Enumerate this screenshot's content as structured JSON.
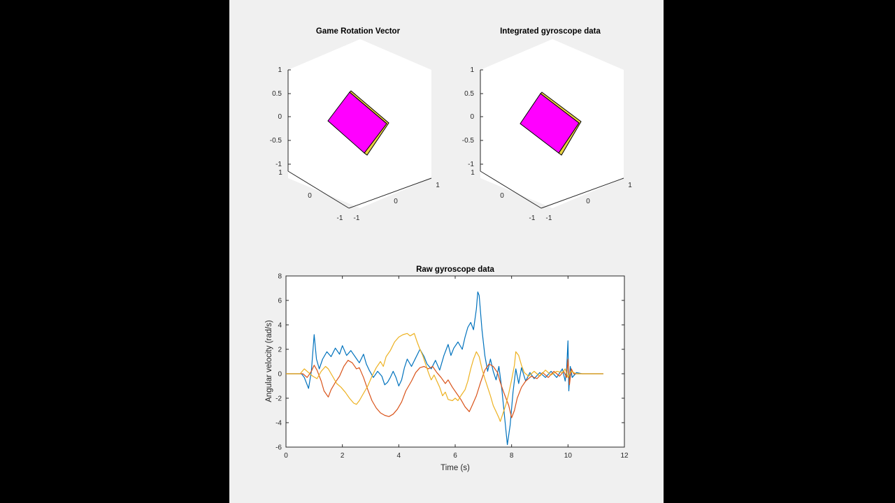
{
  "chart_data": [
    {
      "type": "3d-box",
      "title": "Game Rotation Vector",
      "zlim": [
        -1,
        1
      ],
      "xlim": [
        -1,
        1
      ],
      "ylim": [
        -1,
        1
      ],
      "z_ticks": [
        "1",
        "0.5",
        "0",
        "-0.5",
        "-1"
      ],
      "x_ticks": [
        "-1",
        "0",
        "1"
      ],
      "y_ticks": [
        "1",
        "0",
        "-1"
      ],
      "box_color": "#ff00ff",
      "side_color": "#e8d040"
    },
    {
      "type": "3d-box",
      "title": "Integrated gyroscope data",
      "zlim": [
        -1,
        1
      ],
      "xlim": [
        -1,
        1
      ],
      "ylim": [
        -1,
        1
      ],
      "z_ticks": [
        "1",
        "0.5",
        "0",
        "-0.5",
        "-1"
      ],
      "x_ticks": [
        "-1",
        "0",
        "1"
      ],
      "y_ticks": [
        "1",
        "0",
        "-1"
      ],
      "box_color": "#ff00ff",
      "side_color": "#e8d040"
    },
    {
      "type": "line",
      "title": "Raw gyroscope data",
      "xlabel": "Time (s)",
      "ylabel": "Angular velocity (rad/s)",
      "xlim": [
        0,
        12
      ],
      "ylim": [
        -6,
        8
      ],
      "x_ticks": [
        0,
        2,
        4,
        6,
        8,
        10,
        12
      ],
      "y_ticks": [
        -6,
        -4,
        -2,
        0,
        2,
        4,
        6,
        8
      ],
      "grid": false,
      "series": [
        {
          "color": "#0072bd",
          "points": [
            [
              0,
              0
            ],
            [
              0.55,
              0
            ],
            [
              0.65,
              -0.3
            ],
            [
              0.8,
              -1.2
            ],
            [
              0.9,
              0.2
            ],
            [
              1.0,
              3.2
            ],
            [
              1.08,
              1.2
            ],
            [
              1.18,
              0.4
            ],
            [
              1.3,
              1.2
            ],
            [
              1.45,
              1.8
            ],
            [
              1.6,
              1.4
            ],
            [
              1.75,
              2.1
            ],
            [
              1.9,
              1.6
            ],
            [
              2.0,
              2.3
            ],
            [
              2.15,
              1.5
            ],
            [
              2.3,
              1.9
            ],
            [
              2.45,
              1.4
            ],
            [
              2.6,
              0.9
            ],
            [
              2.75,
              1.6
            ],
            [
              2.85,
              0.8
            ],
            [
              2.95,
              0.3
            ],
            [
              3.1,
              -0.3
            ],
            [
              3.25,
              0.2
            ],
            [
              3.4,
              -0.2
            ],
            [
              3.5,
              -0.9
            ],
            [
              3.6,
              -0.7
            ],
            [
              3.7,
              -0.3
            ],
            [
              3.8,
              0.2
            ],
            [
              3.9,
              -0.3
            ],
            [
              4.0,
              -1.0
            ],
            [
              4.1,
              -0.5
            ],
            [
              4.2,
              0.5
            ],
            [
              4.3,
              1.2
            ],
            [
              4.45,
              0.6
            ],
            [
              4.6,
              1.3
            ],
            [
              4.75,
              2.0
            ],
            [
              4.9,
              1.4
            ],
            [
              5.0,
              0.8
            ],
            [
              5.15,
              0.4
            ],
            [
              5.3,
              1.1
            ],
            [
              5.45,
              0.3
            ],
            [
              5.6,
              1.5
            ],
            [
              5.75,
              2.4
            ],
            [
              5.85,
              1.5
            ],
            [
              5.95,
              2.1
            ],
            [
              6.1,
              2.6
            ],
            [
              6.25,
              2.0
            ],
            [
              6.35,
              3.0
            ],
            [
              6.45,
              3.8
            ],
            [
              6.55,
              4.2
            ],
            [
              6.65,
              3.6
            ],
            [
              6.75,
              5.3
            ],
            [
              6.8,
              6.7
            ],
            [
              6.85,
              6.4
            ],
            [
              6.95,
              3.6
            ],
            [
              7.05,
              1.5
            ],
            [
              7.15,
              0.2
            ],
            [
              7.25,
              1.2
            ],
            [
              7.35,
              0.2
            ],
            [
              7.45,
              -0.5
            ],
            [
              7.55,
              0.6
            ],
            [
              7.65,
              -1.2
            ],
            [
              7.75,
              -3.5
            ],
            [
              7.85,
              -5.8
            ],
            [
              7.95,
              -4.2
            ],
            [
              8.05,
              -1.5
            ],
            [
              8.15,
              0.4
            ],
            [
              8.25,
              -0.8
            ],
            [
              8.35,
              0.5
            ],
            [
              8.5,
              -0.6
            ],
            [
              8.65,
              0.1
            ],
            [
              8.8,
              -0.4
            ],
            [
              9.0,
              0.1
            ],
            [
              9.2,
              -0.3
            ],
            [
              9.4,
              0.2
            ],
            [
              9.6,
              -0.3
            ],
            [
              9.8,
              0.4
            ],
            [
              9.9,
              -0.6
            ],
            [
              9.95,
              0.3
            ],
            [
              10.0,
              2.7
            ],
            [
              10.03,
              -1.4
            ],
            [
              10.08,
              0.6
            ],
            [
              10.15,
              -0.3
            ],
            [
              10.3,
              0.1
            ],
            [
              10.5,
              0
            ],
            [
              11.25,
              0
            ]
          ]
        },
        {
          "color": "#d95319",
          "points": [
            [
              0,
              0
            ],
            [
              0.6,
              0
            ],
            [
              0.75,
              -0.3
            ],
            [
              0.9,
              0.2
            ],
            [
              1.0,
              0.7
            ],
            [
              1.1,
              0.3
            ],
            [
              1.25,
              -0.6
            ],
            [
              1.35,
              -1.4
            ],
            [
              1.5,
              -1.9
            ],
            [
              1.6,
              -1.3
            ],
            [
              1.75,
              -0.7
            ],
            [
              1.9,
              -0.2
            ],
            [
              2.05,
              0.6
            ],
            [
              2.2,
              1.1
            ],
            [
              2.35,
              0.9
            ],
            [
              2.5,
              0.4
            ],
            [
              2.6,
              0.5
            ],
            [
              2.75,
              -0.3
            ],
            [
              2.9,
              -1.3
            ],
            [
              3.05,
              -2.2
            ],
            [
              3.2,
              -2.8
            ],
            [
              3.35,
              -3.2
            ],
            [
              3.5,
              -3.4
            ],
            [
              3.65,
              -3.5
            ],
            [
              3.8,
              -3.3
            ],
            [
              3.95,
              -2.9
            ],
            [
              4.1,
              -2.3
            ],
            [
              4.25,
              -1.4
            ],
            [
              4.45,
              -0.6
            ],
            [
              4.6,
              0.1
            ],
            [
              4.75,
              0.5
            ],
            [
              4.9,
              0.6
            ],
            [
              5.05,
              0.4
            ],
            [
              5.2,
              0.6
            ],
            [
              5.35,
              0.1
            ],
            [
              5.5,
              -0.3
            ],
            [
              5.65,
              -0.8
            ],
            [
              5.75,
              -0.5
            ],
            [
              5.9,
              -1.1
            ],
            [
              6.05,
              -1.6
            ],
            [
              6.2,
              -2.1
            ],
            [
              6.35,
              -2.7
            ],
            [
              6.5,
              -3.1
            ],
            [
              6.6,
              -2.6
            ],
            [
              6.75,
              -1.8
            ],
            [
              6.9,
              -0.7
            ],
            [
              7.05,
              0.3
            ],
            [
              7.2,
              0.8
            ],
            [
              7.35,
              0.6
            ],
            [
              7.5,
              0.1
            ],
            [
              7.6,
              -0.7
            ],
            [
              7.7,
              -1.4
            ],
            [
              7.8,
              -2.0
            ],
            [
              7.9,
              -2.6
            ],
            [
              8.0,
              -3.6
            ],
            [
              8.1,
              -3.0
            ],
            [
              8.2,
              -2.0
            ],
            [
              8.35,
              -1.1
            ],
            [
              8.5,
              -0.6
            ],
            [
              8.7,
              -0.2
            ],
            [
              8.9,
              -0.4
            ],
            [
              9.1,
              0.1
            ],
            [
              9.3,
              -0.3
            ],
            [
              9.5,
              0.2
            ],
            [
              9.7,
              -0.2
            ],
            [
              9.85,
              0.2
            ],
            [
              9.95,
              -0.3
            ],
            [
              10.0,
              1.2
            ],
            [
              10.05,
              -0.9
            ],
            [
              10.12,
              0.4
            ],
            [
              10.2,
              0
            ],
            [
              11.25,
              0
            ]
          ]
        },
        {
          "color": "#edb120",
          "points": [
            [
              0,
              0
            ],
            [
              0.5,
              0
            ],
            [
              0.65,
              0.4
            ],
            [
              0.8,
              0.1
            ],
            [
              0.95,
              -0.2
            ],
            [
              1.1,
              -0.4
            ],
            [
              1.25,
              0.2
            ],
            [
              1.4,
              0.6
            ],
            [
              1.5,
              0.4
            ],
            [
              1.65,
              -0.2
            ],
            [
              1.8,
              -0.8
            ],
            [
              1.95,
              -1.1
            ],
            [
              2.1,
              -1.5
            ],
            [
              2.25,
              -2.0
            ],
            [
              2.4,
              -2.4
            ],
            [
              2.5,
              -2.5
            ],
            [
              2.6,
              -2.2
            ],
            [
              2.75,
              -1.6
            ],
            [
              2.9,
              -1.0
            ],
            [
              3.05,
              -0.2
            ],
            [
              3.2,
              0.5
            ],
            [
              3.35,
              1.0
            ],
            [
              3.45,
              0.6
            ],
            [
              3.55,
              1.4
            ],
            [
              3.7,
              1.9
            ],
            [
              3.85,
              2.6
            ],
            [
              4.0,
              3.0
            ],
            [
              4.15,
              3.2
            ],
            [
              4.3,
              3.3
            ],
            [
              4.4,
              3.1
            ],
            [
              4.55,
              3.3
            ],
            [
              4.65,
              2.6
            ],
            [
              4.75,
              2.0
            ],
            [
              4.85,
              1.5
            ],
            [
              4.95,
              0.8
            ],
            [
              5.05,
              0.1
            ],
            [
              5.15,
              -0.5
            ],
            [
              5.25,
              -0.1
            ],
            [
              5.35,
              -0.6
            ],
            [
              5.45,
              -1.1
            ],
            [
              5.55,
              -1.8
            ],
            [
              5.65,
              -1.5
            ],
            [
              5.75,
              -2.1
            ],
            [
              5.9,
              -2.2
            ],
            [
              6.0,
              -2.0
            ],
            [
              6.1,
              -2.2
            ],
            [
              6.2,
              -1.8
            ],
            [
              6.35,
              -1.3
            ],
            [
              6.45,
              -0.6
            ],
            [
              6.55,
              0.4
            ],
            [
              6.65,
              1.2
            ],
            [
              6.75,
              1.8
            ],
            [
              6.85,
              1.4
            ],
            [
              6.95,
              0.4
            ],
            [
              7.05,
              -0.4
            ],
            [
              7.15,
              -1.1
            ],
            [
              7.25,
              -1.8
            ],
            [
              7.35,
              -2.6
            ],
            [
              7.45,
              -3.1
            ],
            [
              7.55,
              -3.6
            ],
            [
              7.6,
              -3.9
            ],
            [
              7.7,
              -3.2
            ],
            [
              7.8,
              -2.5
            ],
            [
              7.9,
              -1.6
            ],
            [
              8.0,
              -0.5
            ],
            [
              8.1,
              0.7
            ],
            [
              8.15,
              1.8
            ],
            [
              8.25,
              1.5
            ],
            [
              8.35,
              0.7
            ],
            [
              8.45,
              0.1
            ],
            [
              8.6,
              -0.2
            ],
            [
              8.8,
              0.2
            ],
            [
              9.0,
              -0.2
            ],
            [
              9.2,
              0.3
            ],
            [
              9.4,
              -0.1
            ],
            [
              9.6,
              0.2
            ],
            [
              9.8,
              0.1
            ],
            [
              9.9,
              0.4
            ],
            [
              10.0,
              -0.3
            ],
            [
              10.1,
              0.2
            ],
            [
              10.3,
              0
            ],
            [
              11.25,
              0
            ]
          ]
        }
      ]
    }
  ]
}
